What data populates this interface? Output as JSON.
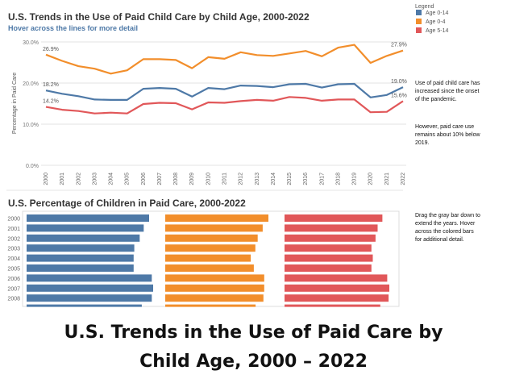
{
  "chart_data": [
    {
      "type": "line",
      "title": "U.S. Trends in the Use of Paid Child Care by Child Age, 2000-2022",
      "subtitle": "Hover across the lines for more detail",
      "ylabel": "Percentage in Paid Care",
      "ylim": [
        0,
        30
      ],
      "yticks": [
        "0.0%",
        "10.0%",
        "20.0%",
        "30.0%"
      ],
      "grid": true,
      "x": [
        "2000",
        "2001",
        "2002",
        "2003",
        "2004",
        "2005",
        "2006",
        "2007",
        "2008",
        "2009",
        "2010",
        "2011",
        "2012",
        "2013",
        "2014",
        "2015",
        "2016",
        "2017",
        "2018",
        "2019",
        "2020",
        "2021",
        "2022"
      ],
      "legend_title": "Legend",
      "legend_position": "top-right",
      "series": [
        {
          "name": "Age 0-14",
          "color": "#4e79a7",
          "values": [
            18.2,
            17.4,
            16.8,
            16.0,
            15.9,
            15.9,
            18.6,
            18.8,
            18.6,
            16.7,
            18.8,
            18.5,
            19.4,
            19.3,
            19.0,
            19.7,
            19.8,
            18.9,
            19.7,
            19.8,
            16.5,
            17.1,
            19.0
          ],
          "start_label": "18.2%",
          "end_label": "19.0%"
        },
        {
          "name": "Age 0-4",
          "color": "#f28e2b",
          "values": [
            26.9,
            25.4,
            24.1,
            23.5,
            22.3,
            23.1,
            25.8,
            25.8,
            25.6,
            23.6,
            26.3,
            25.9,
            27.5,
            26.8,
            26.6,
            27.2,
            27.8,
            26.5,
            28.6,
            29.3,
            24.9,
            26.6,
            27.9
          ],
          "start_label": "26.9%",
          "end_label": "27.9%"
        },
        {
          "name": "Age 5-14",
          "color": "#e15759",
          "values": [
            14.2,
            13.5,
            13.2,
            12.6,
            12.8,
            12.6,
            14.9,
            15.2,
            15.1,
            13.6,
            15.3,
            15.2,
            15.6,
            15.9,
            15.7,
            16.6,
            16.4,
            15.7,
            16.0,
            16.0,
            12.9,
            13.0,
            15.6
          ],
          "start_label": "14.2%",
          "end_label": "15.6%"
        }
      ]
    },
    {
      "type": "bar",
      "title": "U.S. Percentage of Children in Paid Care, 2000-2022",
      "categories": [
        "2000",
        "2001",
        "2002",
        "2003",
        "2004",
        "2005",
        "2006",
        "2007",
        "2008"
      ],
      "series": [
        {
          "name": "Age 0-14",
          "color": "#4e79a7",
          "values": [
            18.2,
            17.4,
            16.8,
            16.0,
            15.9,
            15.9,
            18.6,
            18.8,
            18.6
          ]
        },
        {
          "name": "Age 0-4",
          "color": "#f28e2b",
          "values": [
            26.9,
            25.4,
            24.1,
            23.5,
            22.3,
            23.1,
            25.8,
            25.8,
            25.6
          ]
        },
        {
          "name": "Age 5-14",
          "color": "#e15759",
          "values": [
            14.2,
            13.5,
            13.2,
            12.6,
            12.8,
            12.6,
            14.9,
            15.2,
            15.1
          ]
        }
      ]
    }
  ],
  "annotations": {
    "pandemic_note_1": [
      "Use of paid child care has",
      "increased since the onset",
      "of the pandemic."
    ],
    "pandemic_note_2": [
      "However, paid care use",
      "remains about 10% below",
      "2019."
    ],
    "drag_note": [
      "Drag the gray bar down to",
      "extend the years. Hover",
      "across the colored bars",
      "for additional detail."
    ]
  },
  "caption": {
    "line1": "U.S. Trends in the Use of Paid Care by",
    "line2": "Child Age, 2000 – 2022"
  }
}
